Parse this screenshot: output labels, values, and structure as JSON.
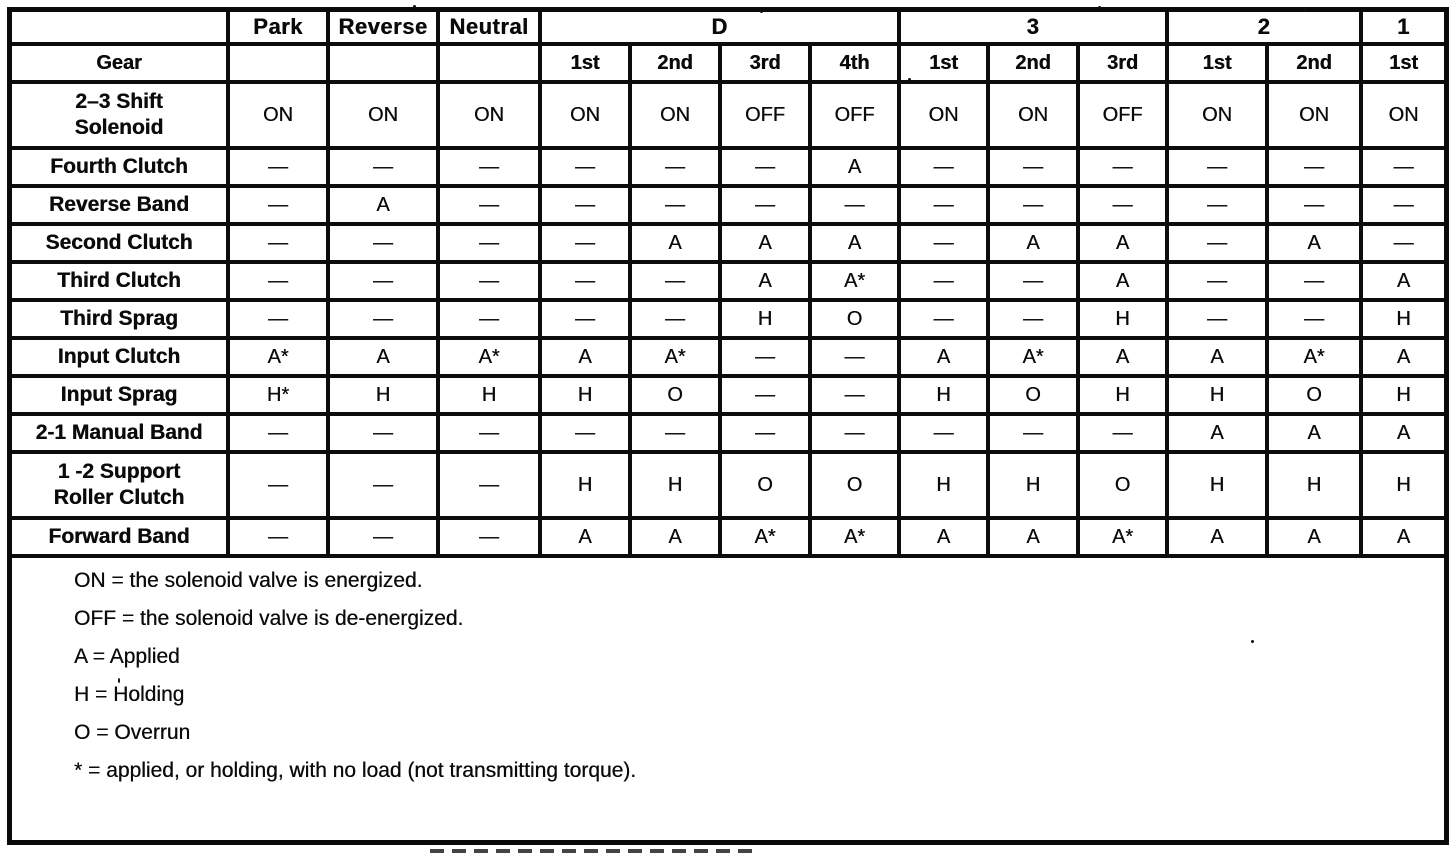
{
  "table": {
    "header_row1": [
      {
        "label": "",
        "span": 1
      },
      {
        "label": "Park",
        "span": 1
      },
      {
        "label": "Reverse",
        "span": 1
      },
      {
        "label": "Neutral",
        "span": 1
      },
      {
        "label": "D",
        "span": 4
      },
      {
        "label": "3",
        "span": 3
      },
      {
        "label": "2",
        "span": 2
      },
      {
        "label": "1",
        "span": 1
      }
    ],
    "header_row2": [
      "Gear",
      "",
      "",
      "",
      "1st",
      "2nd",
      "3rd",
      "4th",
      "1st",
      "2nd",
      "3rd",
      "1st",
      "2nd",
      "1st"
    ],
    "rows": [
      {
        "label_lines": [
          "2–3 Shift",
          "Solenoid"
        ],
        "values": [
          "ON",
          "ON",
          "ON",
          "ON",
          "ON",
          "OFF",
          "OFF",
          "ON",
          "ON",
          "OFF",
          "ON",
          "ON",
          "ON"
        ]
      },
      {
        "label_lines": [
          "Fourth Clutch"
        ],
        "values": [
          "—",
          "—",
          "—",
          "—",
          "—",
          "—",
          "A",
          "—",
          "—",
          "—",
          "—",
          "—",
          "—"
        ]
      },
      {
        "label_lines": [
          "Reverse Band"
        ],
        "values": [
          "—",
          "A",
          "—",
          "—",
          "—",
          "—",
          "—",
          "—",
          "—",
          "—",
          "—",
          "—",
          "—"
        ]
      },
      {
        "label_lines": [
          "Second Clutch"
        ],
        "values": [
          "—",
          "—",
          "—",
          "—",
          "A",
          "A",
          "A",
          "—",
          "A",
          "A",
          "—",
          "A",
          "—"
        ]
      },
      {
        "label_lines": [
          "Third Clutch"
        ],
        "values": [
          "—",
          "—",
          "—",
          "—",
          "—",
          "A",
          "A*",
          "—",
          "—",
          "A",
          "—",
          "—",
          "A"
        ]
      },
      {
        "label_lines": [
          "Third Sprag"
        ],
        "values": [
          "—",
          "—",
          "—",
          "—",
          "—",
          "H",
          "O",
          "—",
          "—",
          "H",
          "—",
          "—",
          "H"
        ]
      },
      {
        "label_lines": [
          "Input Clutch"
        ],
        "values": [
          "A*",
          "A",
          "A*",
          "A",
          "A*",
          "—",
          "—",
          "A",
          "A*",
          "A",
          "A",
          "A*",
          "A"
        ]
      },
      {
        "label_lines": [
          "Input Sprag"
        ],
        "values": [
          "H*",
          "H",
          "H",
          "H",
          "O",
          "—",
          "—",
          "H",
          "O",
          "H",
          "H",
          "O",
          "H"
        ]
      },
      {
        "label_lines": [
          "2-1 Manual Band"
        ],
        "values": [
          "—",
          "—",
          "—",
          "—",
          "—",
          "—",
          "—",
          "—",
          "—",
          "—",
          "A",
          "A",
          "A"
        ]
      },
      {
        "label_lines": [
          "1 -2 Support",
          "Roller Clutch"
        ],
        "values": [
          "—",
          "—",
          "—",
          "H",
          "H",
          "O",
          "O",
          "H",
          "H",
          "O",
          "H",
          "H",
          "H"
        ]
      },
      {
        "label_lines": [
          "Forward Band"
        ],
        "values": [
          "—",
          "—",
          "—",
          "A",
          "A",
          "A*",
          "A*",
          "A",
          "A",
          "A*",
          "A",
          "A",
          "A"
        ]
      }
    ]
  },
  "notes": [
    "ON = the solenoid valve is energized.",
    "OFF = the solenoid valve is de-energized.",
    "A = Applied",
    "H = Holding",
    "O = Overrun",
    "* = applied, or holding, with no load (not transmitting torque)."
  ]
}
